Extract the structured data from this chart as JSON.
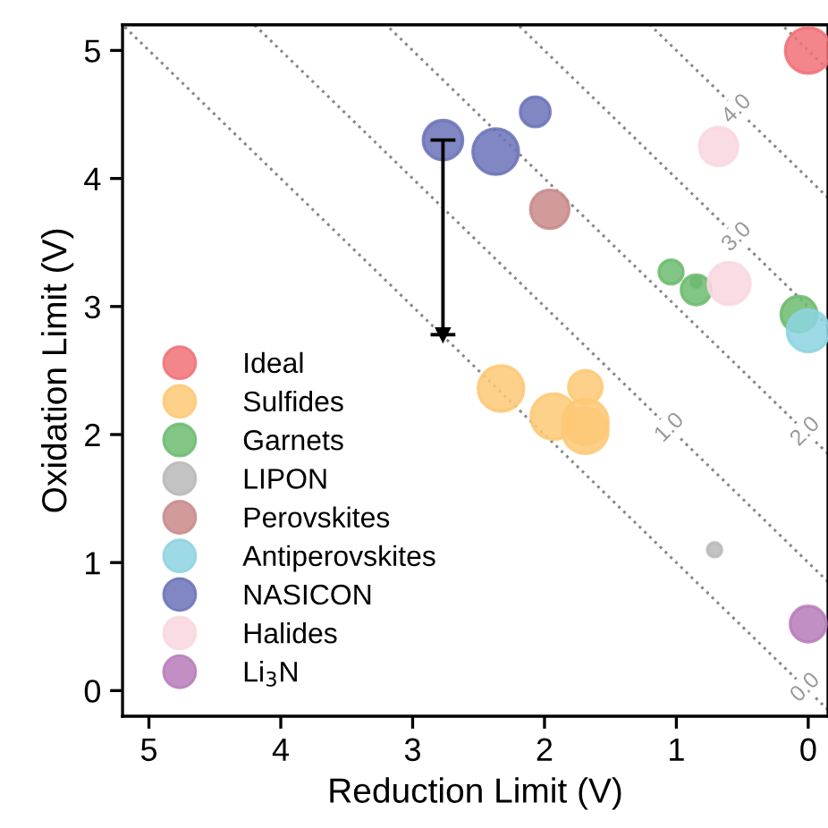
{
  "chart_data": {
    "type": "bubble",
    "xlabel": "Reduction Limit (V)",
    "ylabel": "Oxidation Limit (V)",
    "xlim": [
      5.2,
      -0.15
    ],
    "ylim": [
      -0.2,
      5.2
    ],
    "xticks": [
      5,
      4,
      3,
      2,
      1,
      0
    ],
    "yticks": [
      0,
      1,
      2,
      3,
      4,
      5
    ],
    "grid": false,
    "legend": "bottom left",
    "series": [
      {
        "type": "line",
        "color": "#888888",
        "line_style": "dotted",
        "marker": "none",
        "x": [
          -0.15,
          5.2
        ],
        "values": [
          -0.15,
          5.2
        ]
      },
      {
        "type": "line",
        "color": "#888888",
        "line_style": "dotted",
        "marker": "none",
        "x": [
          -0.15,
          4.2
        ],
        "values": [
          0.85,
          5.2
        ]
      },
      {
        "type": "line",
        "color": "#888888",
        "line_style": "dotted",
        "marker": "none",
        "x": [
          -0.15,
          3.2
        ],
        "values": [
          1.85,
          5.2
        ]
      },
      {
        "type": "line",
        "color": "#888888",
        "line_style": "dotted",
        "marker": "none",
        "x": [
          -0.15,
          2.2
        ],
        "values": [
          2.85,
          5.2
        ]
      },
      {
        "type": "line",
        "color": "#888888",
        "line_style": "dotted",
        "marker": "none",
        "x": [
          -0.15,
          1.2
        ],
        "values": [
          3.85,
          5.2
        ]
      },
      {
        "type": "line",
        "color": "#888888",
        "line_style": "dotted",
        "marker": "none",
        "x": [
          -0.15,
          0.2
        ],
        "values": [
          4.85,
          5.2
        ]
      },
      {
        "name": "Ideal",
        "color": "#f07177",
        "x": [
          0
        ],
        "values": [
          5.0
        ],
        "sizes": [
          1.0
        ]
      },
      {
        "name": "Sulfides",
        "color": "#fdc976",
        "x": [
          2.33,
          1.93,
          1.69,
          1.69,
          1.69
        ],
        "values": [
          2.36,
          2.14,
          2.37,
          2.1,
          2.03
        ],
        "sizes": [
          1.0,
          1.0,
          0.54,
          1.0,
          1.0
        ]
      },
      {
        "name": "Garnets",
        "color": "#6cbb6e",
        "x": [
          1.04,
          0.85,
          0.85,
          0.07
        ],
        "values": [
          3.27,
          3.13,
          3.19,
          2.94
        ],
        "sizes": [
          0.28,
          0.43,
          0.05,
          0.62
        ]
      },
      {
        "name": "LIPON",
        "color": "#b9b9b9",
        "x": [
          0.71
        ],
        "values": [
          1.1
        ],
        "sizes": [
          0.1
        ]
      },
      {
        "name": "Perovskites",
        "color": "#c98a8a",
        "x": [
          1.96
        ],
        "values": [
          3.76
        ],
        "sizes": [
          0.71
        ]
      },
      {
        "name": "Antiperovskites",
        "color": "#8dd3e0",
        "x": [
          0
        ],
        "values": [
          2.81
        ],
        "sizes": [
          0.85
        ]
      },
      {
        "name": "NASICON",
        "color": "#6b72b8",
        "x": [
          2.77,
          2.37,
          2.07
        ],
        "values": [
          4.3,
          4.21,
          4.52
        ],
        "sizes": [
          0.75,
          1.0,
          0.43
        ],
        "errors": [
          [
            2.78,
            4.3
          ],
          null,
          null
        ]
      },
      {
        "name": "Halides",
        "color": "#f9d7df",
        "x": [
          0.68,
          0.6
        ],
        "values": [
          4.25,
          3.18
        ],
        "sizes": [
          0.71,
          0.85
        ]
      },
      {
        "name": "Li$_{3}$N",
        "color": "#b77bbb",
        "x": [
          0
        ],
        "values": [
          0.52
        ],
        "sizes": [
          0.62
        ]
      }
    ],
    "annotations": [
      {
        "text": "0.0",
        "x": 0.02,
        "y": 0.02
      },
      {
        "text": "1.0",
        "x": 1.05,
        "y": 2.05
      },
      {
        "text": "2.0",
        "x": 0.02,
        "y": 2.02
      },
      {
        "text": "3.0",
        "x": 0.54,
        "y": 3.54
      },
      {
        "text": "4.0",
        "x": 0.54,
        "y": 4.54
      }
    ]
  }
}
